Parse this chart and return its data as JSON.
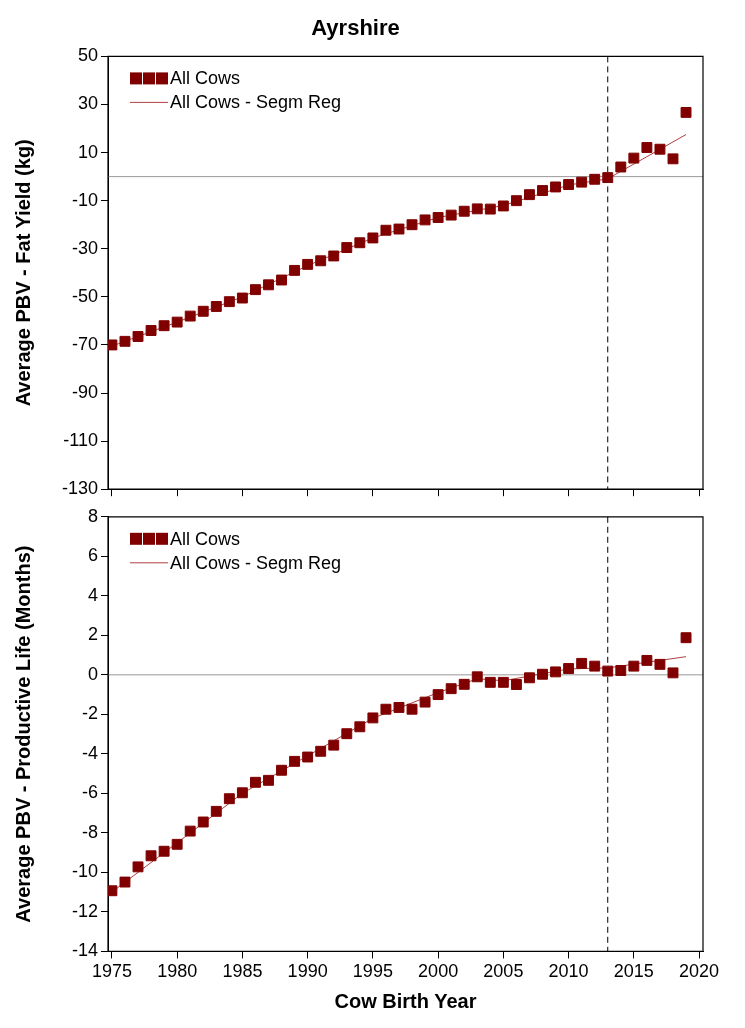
{
  "chart_data": [
    {
      "type": "scatter",
      "title": "Ayrshire",
      "ylabel": "Average PBV - Fat Yield (kg)",
      "x": [
        1975,
        1976,
        1977,
        1978,
        1979,
        1980,
        1981,
        1982,
        1983,
        1984,
        1985,
        1986,
        1987,
        1988,
        1989,
        1990,
        1991,
        1992,
        1993,
        1994,
        1995,
        1996,
        1997,
        1998,
        1999,
        2000,
        2001,
        2002,
        2003,
        2004,
        2005,
        2006,
        2007,
        2008,
        2009,
        2010,
        2011,
        2012,
        2013,
        2014,
        2015,
        2016,
        2017,
        2018,
        2019
      ],
      "xlim": [
        1974.7,
        2020.3
      ],
      "xticks": [
        1975,
        1980,
        1985,
        1990,
        1995,
        2000,
        2005,
        2010,
        2015,
        2020
      ],
      "ylim": [
        -130,
        50
      ],
      "yticks": [
        -130,
        -110,
        -90,
        -70,
        -50,
        -30,
        -10,
        10,
        30,
        50
      ],
      "tick_labels": "y",
      "grid": false,
      "legend": "top left",
      "series": [
        {
          "name": "All Cows",
          "marker": "square",
          "color": "#800000",
          "values": [
            -70,
            -68.5,
            -66.5,
            -64,
            -62,
            -60.5,
            -58,
            -56,
            -54,
            -52,
            -50.5,
            -47,
            -45,
            -43,
            -39,
            -36.5,
            -35,
            -33,
            -29.5,
            -27.5,
            -25.5,
            -22.3,
            -21.8,
            -20,
            -18,
            -17,
            -16,
            -14.4,
            -13.4,
            -13.5,
            -12.2,
            -10,
            -7.5,
            -5.8,
            -4.3,
            -3.3,
            -2.3,
            -1.1,
            -0.4,
            4,
            7.7,
            12.1,
            11.4,
            7.4,
            26.7
          ]
        },
        {
          "name": "All Cows - Segm Reg",
          "type": "line",
          "marker": "none",
          "color": "#b04040",
          "x": [
            1975,
            1980,
            1985,
            1990,
            1995,
            2000,
            2005,
            2010,
            2013,
            2019
          ],
          "values": [
            -70.5,
            -60.5,
            -50,
            -37,
            -25.5,
            -17,
            -12,
            -3.5,
            -0.9,
            17.5
          ]
        }
      ],
      "ref_lines": [
        {
          "axis": "y",
          "value": 0,
          "color": "#999999",
          "line_style": "solid"
        },
        {
          "axis": "x",
          "value": 2013,
          "color": "#000000",
          "line_style": "dashed"
        }
      ]
    },
    {
      "type": "scatter",
      "xlabel": "Cow Birth Year",
      "ylabel": "Average PBV - Productive Life (Months)",
      "x": [
        1975,
        1976,
        1977,
        1978,
        1979,
        1980,
        1981,
        1982,
        1983,
        1984,
        1985,
        1986,
        1987,
        1988,
        1989,
        1990,
        1991,
        1992,
        1993,
        1994,
        1995,
        1996,
        1997,
        1998,
        1999,
        2000,
        2001,
        2002,
        2003,
        2004,
        2005,
        2006,
        2007,
        2008,
        2009,
        2010,
        2011,
        2012,
        2013,
        2014,
        2015,
        2016,
        2017,
        2018,
        2019
      ],
      "xlim": [
        1974.7,
        2020.3
      ],
      "xticks": [
        1975,
        1980,
        1985,
        1990,
        1995,
        2000,
        2005,
        2010,
        2015,
        2020
      ],
      "ylim": [
        -14,
        8
      ],
      "yticks": [
        -14,
        -12,
        -10,
        -8,
        -6,
        -4,
        -2,
        0,
        2,
        4,
        6,
        8
      ],
      "grid": false,
      "legend": "top left",
      "series": [
        {
          "name": "All Cows",
          "marker": "square",
          "color": "#800000",
          "values": [
            -10.93,
            -10.49,
            -9.72,
            -9.16,
            -8.93,
            -8.58,
            -7.91,
            -7.45,
            -6.91,
            -6.27,
            -5.97,
            -5.44,
            -5.34,
            -4.83,
            -4.38,
            -4.16,
            -3.87,
            -3.56,
            -2.98,
            -2.63,
            -2.18,
            -1.74,
            -1.65,
            -1.74,
            -1.38,
            -1.0,
            -0.7,
            -0.48,
            -0.1,
            -0.38,
            -0.38,
            -0.49,
            -0.15,
            0.03,
            0.15,
            0.32,
            0.58,
            0.44,
            0.19,
            0.22,
            0.44,
            0.73,
            0.53,
            0.1,
            1.88
          ]
        },
        {
          "name": "All Cows - Segm Reg",
          "type": "line",
          "marker": "none",
          "color": "#b04040",
          "x": [
            1975,
            1980,
            1985,
            1990,
            1995,
            2000,
            2003,
            2005,
            2010,
            2013,
            2019
          ],
          "values": [
            -11,
            -8.5,
            -6,
            -4.1,
            -2.2,
            -0.9,
            -0.2,
            -0.3,
            0.3,
            0.35,
            0.92
          ]
        }
      ],
      "ref_lines": [
        {
          "axis": "y",
          "value": 0,
          "color": "#999999",
          "line_style": "solid"
        },
        {
          "axis": "x",
          "value": 2013,
          "color": "#000000",
          "line_style": "dashed"
        }
      ]
    }
  ]
}
